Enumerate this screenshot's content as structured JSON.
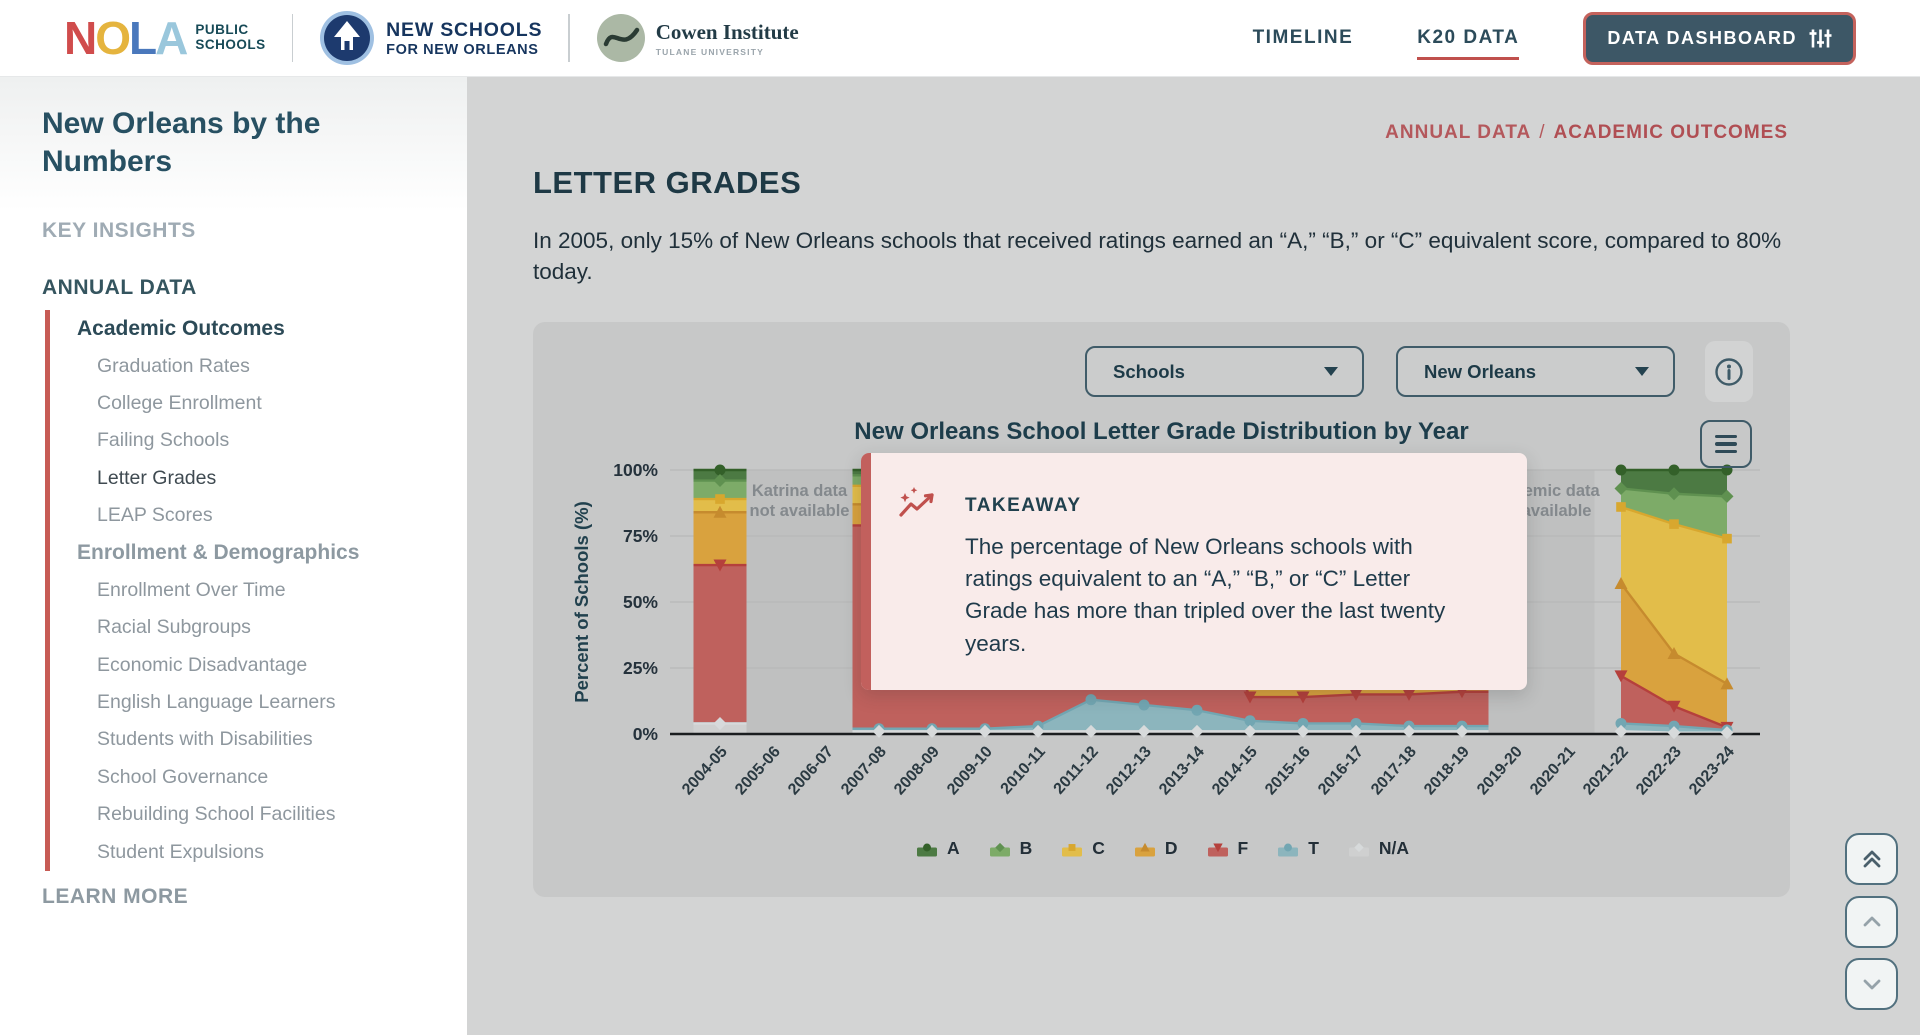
{
  "header": {
    "nola_logo": {
      "letters": [
        {
          "ch": "N",
          "color": "#d04c4c"
        },
        {
          "ch": "O",
          "color": "#e5b43e"
        },
        {
          "ch": "L",
          "color": "#4a78bc"
        },
        {
          "ch": "A",
          "color": "#9ac7dc"
        }
      ],
      "sub_line1": "PUBLIC",
      "sub_line2": "SCHOOLS"
    },
    "nsno": {
      "line1": "NEW SCHOOLS",
      "line2": "FOR NEW ORLEANS"
    },
    "cowen": {
      "name": "Cowen Institute",
      "sub": "TULANE UNIVERSITY"
    },
    "nav": {
      "timeline": "TIMELINE",
      "k20": "K20 DATA",
      "dashboard": "DATA DASHBOARD"
    }
  },
  "sidebar": {
    "title": "New Orleans by the Numbers",
    "key_insights": "KEY INSIGHTS",
    "annual_data": "ANNUAL DATA",
    "group1_header": "Academic Outcomes",
    "group1": [
      "Graduation Rates",
      "College Enrollment",
      "Failing Schools",
      "Letter Grades",
      "LEAP Scores"
    ],
    "active_item": "Letter Grades",
    "group2_header": "Enrollment & Demographics",
    "group2": [
      "Enrollment Over Time",
      "Racial Subgroups",
      "Economic Disadvantage",
      "English Language Learners",
      "Students with Disabilities",
      "School Governance",
      "Rebuilding School Facilities",
      "Student Expulsions"
    ],
    "learn_more": "LEARN MORE"
  },
  "breadcrumb": {
    "parent": "ANNUAL DATA",
    "separator": "/",
    "current": "ACADEMIC OUTCOMES"
  },
  "page": {
    "title": "LETTER GRADES",
    "intro": "In 2005, only 15% of New Orleans schools that received ratings earned an “A,” “B,” or “C” equivalent score, compared to 80% today."
  },
  "controls": {
    "dataset": "Schools",
    "region": "New Orleans"
  },
  "takeaway": {
    "heading": "TAKEAWAY",
    "body": "The percentage of New Orleans schools with ratings equivalent to an “A,” “B,” or “C” Letter Grade has more than tripled over the last twenty years."
  },
  "chart_data": {
    "type": "area",
    "stacked": true,
    "title": "New Orleans School Letter Grade Distribution by Year",
    "ylabel": "Percent of Schools (%)",
    "ylim": [
      0,
      100
    ],
    "grid": true,
    "legend_position": "bottom",
    "yticks": [
      {
        "value": 100,
        "label": "100%"
      },
      {
        "value": 75,
        "label": "75%"
      },
      {
        "value": 50,
        "label": "50%"
      },
      {
        "value": 25,
        "label": "25%"
      },
      {
        "value": 0,
        "label": "0%"
      }
    ],
    "categories": [
      "2004-05",
      "2005-06",
      "2006-07",
      "2007-08",
      "2008-09",
      "2009-10",
      "2010-11",
      "2011-12",
      "2012-13",
      "2013-14",
      "2014-15",
      "2015-16",
      "2016-17",
      "2017-18",
      "2018-19",
      "2019-20",
      "2020-21",
      "2021-22",
      "2022-23",
      "2023-24"
    ],
    "series_note": "values are cumulative-from-top stack boundaries (percent of schools at or above this band top)",
    "series": [
      {
        "name": "A",
        "band_color": "#4c7a43",
        "marker_color": "#336029",
        "marker": "circle",
        "tops": [
          100,
          null,
          null,
          100,
          100,
          100,
          100,
          100,
          100,
          100,
          100,
          100,
          100,
          100,
          100,
          null,
          null,
          100,
          100,
          100
        ]
      },
      {
        "name": "B",
        "band_color": "#7dab68",
        "marker_color": "#5f9150",
        "marker": "diamond",
        "tops": [
          96,
          null,
          null,
          98,
          98,
          98,
          98,
          98,
          98,
          97,
          97,
          97,
          96,
          96,
          95,
          null,
          null,
          93,
          91,
          90
        ]
      },
      {
        "name": "C",
        "band_color": "#e2bd4a",
        "marker_color": "#d8a72e",
        "marker": "square",
        "tops": [
          89,
          null,
          null,
          94,
          94,
          95,
          95,
          94,
          94,
          93,
          90,
          90,
          89,
          88,
          87,
          null,
          null,
          86,
          79.5,
          74
        ]
      },
      {
        "name": "D",
        "band_color": "#d9a23e",
        "marker_color": "#c68b2e",
        "marker": "triangle-up",
        "tops": [
          84,
          null,
          null,
          87,
          88,
          88,
          87,
          85,
          84,
          82,
          76,
          74,
          72,
          70,
          68,
          null,
          null,
          57,
          30.5,
          19
        ]
      },
      {
        "name": "F",
        "band_color": "#bf615d",
        "marker_color": "#b5403c",
        "marker": "triangle-down",
        "tops": [
          64,
          null,
          null,
          79,
          78,
          76,
          72,
          65,
          63,
          60,
          14,
          14,
          15,
          15,
          16,
          null,
          null,
          22,
          10.5,
          2.5
        ]
      },
      {
        "name": "T",
        "band_color": "#8cb5bd",
        "marker_color": "#72a6b2",
        "marker": "circle",
        "tops": [
          4,
          null,
          null,
          2,
          2,
          2,
          3,
          13,
          11,
          9,
          5,
          4,
          4,
          3,
          3,
          null,
          null,
          4,
          3,
          1.5
        ]
      },
      {
        "name": "N/A",
        "band_color": "#cfd0d0",
        "marker_color": "#d7dadb",
        "marker": "diamond",
        "tops": [
          4,
          null,
          null,
          1,
          1,
          1,
          1,
          1,
          1,
          1,
          1,
          1,
          1,
          1,
          1,
          null,
          null,
          1,
          0.5,
          0.5
        ]
      }
    ],
    "no_data": [
      {
        "from": "2005-06",
        "to": "2006-07",
        "lines": [
          "Katrina data",
          "not available"
        ]
      },
      {
        "from": "2019-20",
        "to": "2020-21",
        "lines": [
          "Academic data",
          "not available"
        ]
      }
    ]
  }
}
